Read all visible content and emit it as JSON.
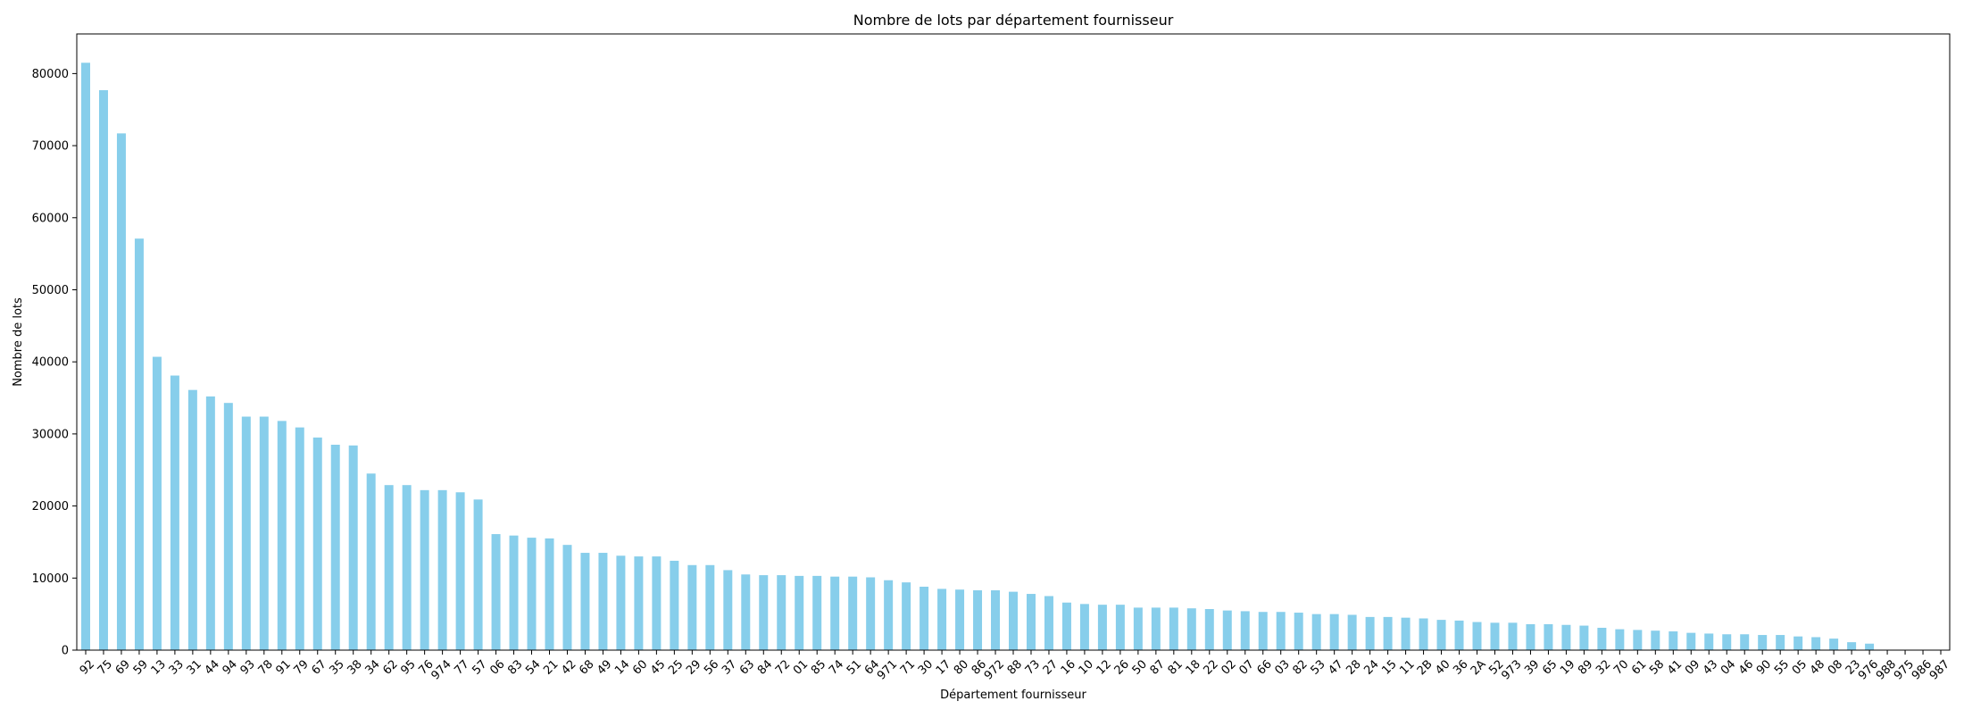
{
  "chart_data": {
    "type": "bar",
    "title": "Nombre de lots par département fournisseur",
    "xlabel": "Département fournisseur",
    "ylabel": "Nombre de lots",
    "ylim": [
      0,
      85500
    ],
    "yticks": [
      0,
      10000,
      20000,
      30000,
      40000,
      50000,
      60000,
      70000,
      80000
    ],
    "grid": false,
    "bar_color": "#87CEEB",
    "categories": [
      "92",
      "75",
      "69",
      "59",
      "13",
      "33",
      "31",
      "44",
      "94",
      "93",
      "78",
      "91",
      "79",
      "67",
      "35",
      "38",
      "34",
      "62",
      "95",
      "76",
      "974",
      "77",
      "57",
      "06",
      "83",
      "54",
      "21",
      "42",
      "68",
      "49",
      "14",
      "60",
      "45",
      "25",
      "29",
      "56",
      "37",
      "63",
      "84",
      "72",
      "01",
      "85",
      "74",
      "51",
      "64",
      "971",
      "71",
      "30",
      "17",
      "80",
      "86",
      "972",
      "88",
      "73",
      "27",
      "16",
      "10",
      "12",
      "26",
      "50",
      "87",
      "81",
      "18",
      "22",
      "02",
      "07",
      "66",
      "03",
      "82",
      "53",
      "47",
      "28",
      "24",
      "15",
      "11",
      "2B",
      "40",
      "36",
      "2A",
      "52",
      "973",
      "39",
      "65",
      "19",
      "89",
      "32",
      "70",
      "61",
      "58",
      "41",
      "09",
      "43",
      "04",
      "46",
      "90",
      "55",
      "05",
      "48",
      "08",
      "23",
      "976",
      "988",
      "975",
      "986",
      "987"
    ],
    "values": [
      81500,
      77700,
      71700,
      57100,
      40700,
      38100,
      36100,
      35200,
      34300,
      32400,
      32400,
      31800,
      30900,
      29500,
      28500,
      28400,
      24500,
      22900,
      22900,
      22200,
      22200,
      21900,
      20900,
      16100,
      15900,
      15600,
      15500,
      14600,
      13500,
      13500,
      13100,
      13000,
      13000,
      12400,
      11800,
      11800,
      11100,
      10500,
      10400,
      10400,
      10300,
      10300,
      10200,
      10200,
      10100,
      9700,
      9400,
      8800,
      8500,
      8400,
      8300,
      8300,
      8100,
      7800,
      7500,
      6600,
      6400,
      6300,
      6300,
      5900,
      5900,
      5900,
      5800,
      5700,
      5500,
      5400,
      5300,
      5300,
      5200,
      5000,
      5000,
      4900,
      4600,
      4600,
      4500,
      4400,
      4200,
      4100,
      3900,
      3800,
      3800,
      3600,
      3600,
      3500,
      3400,
      3100,
      2900,
      2800,
      2700,
      2600,
      2400,
      2300,
      2200,
      2200,
      2100,
      2100,
      1900,
      1800,
      1600,
      1100,
      900,
      0,
      0,
      0,
      0
    ]
  }
}
